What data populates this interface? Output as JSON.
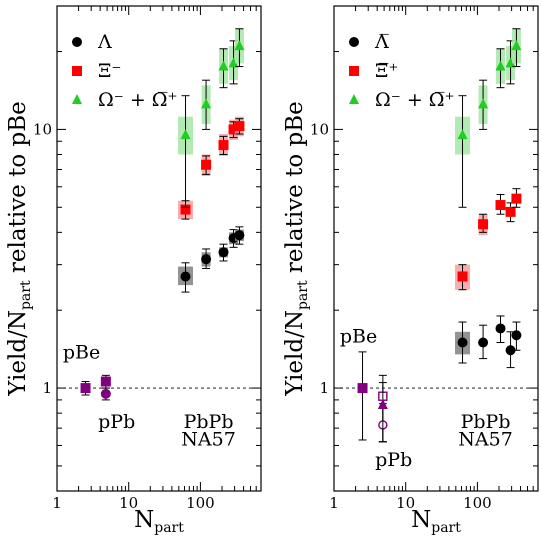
{
  "chart_data": [
    {
      "type": "scatter",
      "panel": "left",
      "xlabel": "N",
      "xlabel_sub": "part",
      "ylabel_prefix": "Yield/N",
      "ylabel_sub": "part",
      "ylabel_suffix": " relative to pBe",
      "xscale": "log",
      "yscale": "log",
      "xlim": [
        1,
        700
      ],
      "ylim": [
        0.4,
        30
      ],
      "xticks": [
        {
          "v": 1,
          "label": "1"
        },
        {
          "v": 10,
          "label": "10"
        },
        {
          "v": 100,
          "label": "100"
        }
      ],
      "yticks": [
        {
          "v": 1,
          "label": "1"
        },
        {
          "v": 10,
          "label": "10"
        }
      ],
      "reference_line": 1,
      "legend": [
        {
          "label": "Λ",
          "marker": "circle",
          "color": "#000000"
        },
        {
          "label": "Ξ⁻",
          "marker": "square",
          "color": "#ff0000"
        },
        {
          "label": "Ω⁻ + Ω̅⁺",
          "marker": "triangle",
          "color": "#22cc22"
        }
      ],
      "annotations": [
        {
          "text": "pBe",
          "x": 2.2,
          "y": 1.3
        },
        {
          "text": "pPb",
          "x": 6.8,
          "y": 0.7
        },
        {
          "text": "PbPb",
          "x": 130,
          "y": 0.7
        },
        {
          "text": "NA57",
          "x": 130,
          "y": 0.6
        }
      ],
      "series": [
        {
          "name": "Λ",
          "marker": "circle",
          "color": "#000000",
          "band": "#808080",
          "points": [
            {
              "x": 62,
              "y": 2.7,
              "lo": 2.35,
              "hi": 3.05,
              "sys_lo": 2.5,
              "sys_hi": 2.95
            },
            {
              "x": 120,
              "y": 3.15,
              "lo": 2.9,
              "hi": 3.45,
              "sys_lo": 2.95,
              "sys_hi": 3.35
            },
            {
              "x": 210,
              "y": 3.35,
              "lo": 3.1,
              "hi": 3.6,
              "sys_lo": 3.2,
              "sys_hi": 3.5
            },
            {
              "x": 290,
              "y": 3.8,
              "lo": 3.5,
              "hi": 4.1,
              "sys_lo": 3.6,
              "sys_hi": 4.0
            },
            {
              "x": 350,
              "y": 3.9,
              "lo": 3.6,
              "hi": 4.2,
              "sys_lo": 3.7,
              "sys_hi": 4.1
            }
          ]
        },
        {
          "name": "Ξ⁻",
          "marker": "square",
          "color": "#ff0000",
          "band": "#f5a0a0",
          "points": [
            {
              "x": 62,
              "y": 4.9,
              "lo": 4.5,
              "hi": 5.3,
              "sys_lo": 4.5,
              "sys_hi": 5.3
            },
            {
              "x": 120,
              "y": 7.3,
              "lo": 6.7,
              "hi": 7.9,
              "sys_lo": 6.6,
              "sys_hi": 8.0
            },
            {
              "x": 210,
              "y": 8.7,
              "lo": 8.0,
              "hi": 9.4,
              "sys_lo": 7.9,
              "sys_hi": 9.6
            },
            {
              "x": 290,
              "y": 10.0,
              "lo": 9.3,
              "hi": 10.7,
              "sys_lo": 9.1,
              "sys_hi": 10.9
            },
            {
              "x": 350,
              "y": 10.3,
              "lo": 9.6,
              "hi": 11.0,
              "sys_lo": 9.4,
              "sys_hi": 11.2
            }
          ]
        },
        {
          "name": "Ω⁻ + Ω̅⁺",
          "marker": "triangle",
          "color": "#22cc22",
          "band": "#a6e6a6",
          "points": [
            {
              "x": 62,
              "y": 9.5,
              "lo": 5.0,
              "hi": 13.5,
              "sys_lo": 8.0,
              "sys_hi": 11.2
            },
            {
              "x": 120,
              "y": 12.5,
              "lo": 10.0,
              "hi": 15.5,
              "sys_lo": 10.5,
              "sys_hi": 14.8
            },
            {
              "x": 210,
              "y": 17.5,
              "lo": 14.5,
              "hi": 20.5,
              "sys_lo": 15.0,
              "sys_hi": 20.5
            },
            {
              "x": 290,
              "y": 18.0,
              "lo": 15.0,
              "hi": 22.0,
              "sys_lo": 15.5,
              "sys_hi": 21.0
            },
            {
              "x": 350,
              "y": 21.0,
              "lo": 17.5,
              "hi": 24.5,
              "sys_lo": 18.0,
              "sys_hi": 24.5
            }
          ]
        },
        {
          "name": "pBe/pPb",
          "marker": "square",
          "color": "#800080",
          "points": [
            {
              "x": 2.5,
              "y": 1.0,
              "lo": 0.94,
              "hi": 1.06
            },
            {
              "x": 4.8,
              "y": 1.06,
              "lo": 1.0,
              "hi": 1.12
            }
          ]
        },
        {
          "name": "pPb Λ",
          "marker": "circle",
          "color": "#800080",
          "points": [
            {
              "x": 4.8,
              "y": 0.95,
              "lo": 0.9,
              "hi": 1.0
            }
          ]
        }
      ]
    },
    {
      "type": "scatter",
      "panel": "right",
      "xlabel": "N",
      "xlabel_sub": "part",
      "ylabel_prefix": "Yield/N",
      "ylabel_sub": "part",
      "ylabel_suffix": " relative to pBe",
      "xscale": "log",
      "yscale": "log",
      "xlim": [
        1,
        700
      ],
      "ylim": [
        0.4,
        30
      ],
      "xticks": [
        {
          "v": 1,
          "label": "1"
        },
        {
          "v": 10,
          "label": "10"
        },
        {
          "v": 100,
          "label": "100"
        }
      ],
      "yticks": [
        {
          "v": 1,
          "label": "1"
        },
        {
          "v": 10,
          "label": "10"
        }
      ],
      "reference_line": 1,
      "legend": [
        {
          "label": "Λ̅",
          "marker": "circle",
          "color": "#000000"
        },
        {
          "label": "Ξ̅⁺",
          "marker": "square",
          "color": "#ff0000"
        },
        {
          "label": "Ω⁻ + Ω̅⁺",
          "marker": "triangle",
          "color": "#22cc22"
        }
      ],
      "annotations": [
        {
          "text": "pBe",
          "x": 2.2,
          "y": 1.5
        },
        {
          "text": "pPb",
          "x": 6.8,
          "y": 0.5
        },
        {
          "text": "PbPb",
          "x": 130,
          "y": 0.7
        },
        {
          "text": "NA57",
          "x": 130,
          "y": 0.6
        }
      ],
      "series": [
        {
          "name": "Λ̅",
          "marker": "circle",
          "color": "#000000",
          "band": "#808080",
          "points": [
            {
              "x": 62,
              "y": 1.5,
              "lo": 1.25,
              "hi": 1.8,
              "sys_lo": 1.35,
              "sys_hi": 1.65
            },
            {
              "x": 120,
              "y": 1.5,
              "lo": 1.3,
              "hi": 1.75
            },
            {
              "x": 210,
              "y": 1.7,
              "lo": 1.5,
              "hi": 1.9
            },
            {
              "x": 290,
              "y": 1.4,
              "lo": 1.2,
              "hi": 1.65
            },
            {
              "x": 350,
              "y": 1.6,
              "lo": 1.4,
              "hi": 1.8
            }
          ]
        },
        {
          "name": "Ξ̅⁺",
          "marker": "square",
          "color": "#ff0000",
          "band": "#f5a0a0",
          "points": [
            {
              "x": 62,
              "y": 2.7,
              "lo": 2.4,
              "hi": 3.0,
              "sys_lo": 2.4,
              "sys_hi": 3.0
            },
            {
              "x": 120,
              "y": 4.3,
              "lo": 4.0,
              "hi": 4.7,
              "sys_lo": 3.9,
              "sys_hi": 4.7
            },
            {
              "x": 210,
              "y": 5.1,
              "lo": 4.7,
              "hi": 5.6
            },
            {
              "x": 290,
              "y": 4.8,
              "lo": 4.4,
              "hi": 5.2
            },
            {
              "x": 350,
              "y": 5.4,
              "lo": 5.0,
              "hi": 5.9
            }
          ]
        },
        {
          "name": "Ω⁻ + Ω̅⁺",
          "marker": "triangle",
          "color": "#22cc22",
          "band": "#a6e6a6",
          "points": [
            {
              "x": 62,
              "y": 9.5,
              "lo": 5.0,
              "hi": 13.5,
              "sys_lo": 8.0,
              "sys_hi": 11.2
            },
            {
              "x": 120,
              "y": 12.5,
              "lo": 10.0,
              "hi": 15.5,
              "sys_lo": 10.5,
              "sys_hi": 14.8
            },
            {
              "x": 210,
              "y": 17.5,
              "lo": 14.5,
              "hi": 20.5,
              "sys_lo": 15.0,
              "sys_hi": 20.5
            },
            {
              "x": 290,
              "y": 18.0,
              "lo": 15.0,
              "hi": 22.0,
              "sys_lo": 15.5,
              "sys_hi": 21.0
            },
            {
              "x": 350,
              "y": 21.0,
              "lo": 17.5,
              "hi": 24.5,
              "sys_lo": 18.0,
              "sys_hi": 24.5
            }
          ]
        },
        {
          "name": "pBe",
          "marker": "square",
          "color": "#800080",
          "points": [
            {
              "x": 2.5,
              "y": 1.0,
              "lo": 0.63,
              "hi": 1.38
            }
          ]
        },
        {
          "name": "pPb Ξ̅⁺",
          "marker": "square-open",
          "color": "#800080",
          "points": [
            {
              "x": 4.8,
              "y": 0.93,
              "lo": 0.62,
              "hi": 1.12
            }
          ]
        },
        {
          "name": "pPb Λ̅",
          "marker": "circle-open",
          "color": "#800080",
          "points": [
            {
              "x": 4.8,
              "y": 0.72,
              "lo": 0.62,
              "hi": 0.87
            }
          ]
        },
        {
          "name": "pPb Ω",
          "marker": "triangle",
          "color": "#800080",
          "points": [
            {
              "x": 4.8,
              "y": 0.86,
              "lo": 0.62,
              "hi": 1.05
            }
          ]
        }
      ]
    }
  ]
}
